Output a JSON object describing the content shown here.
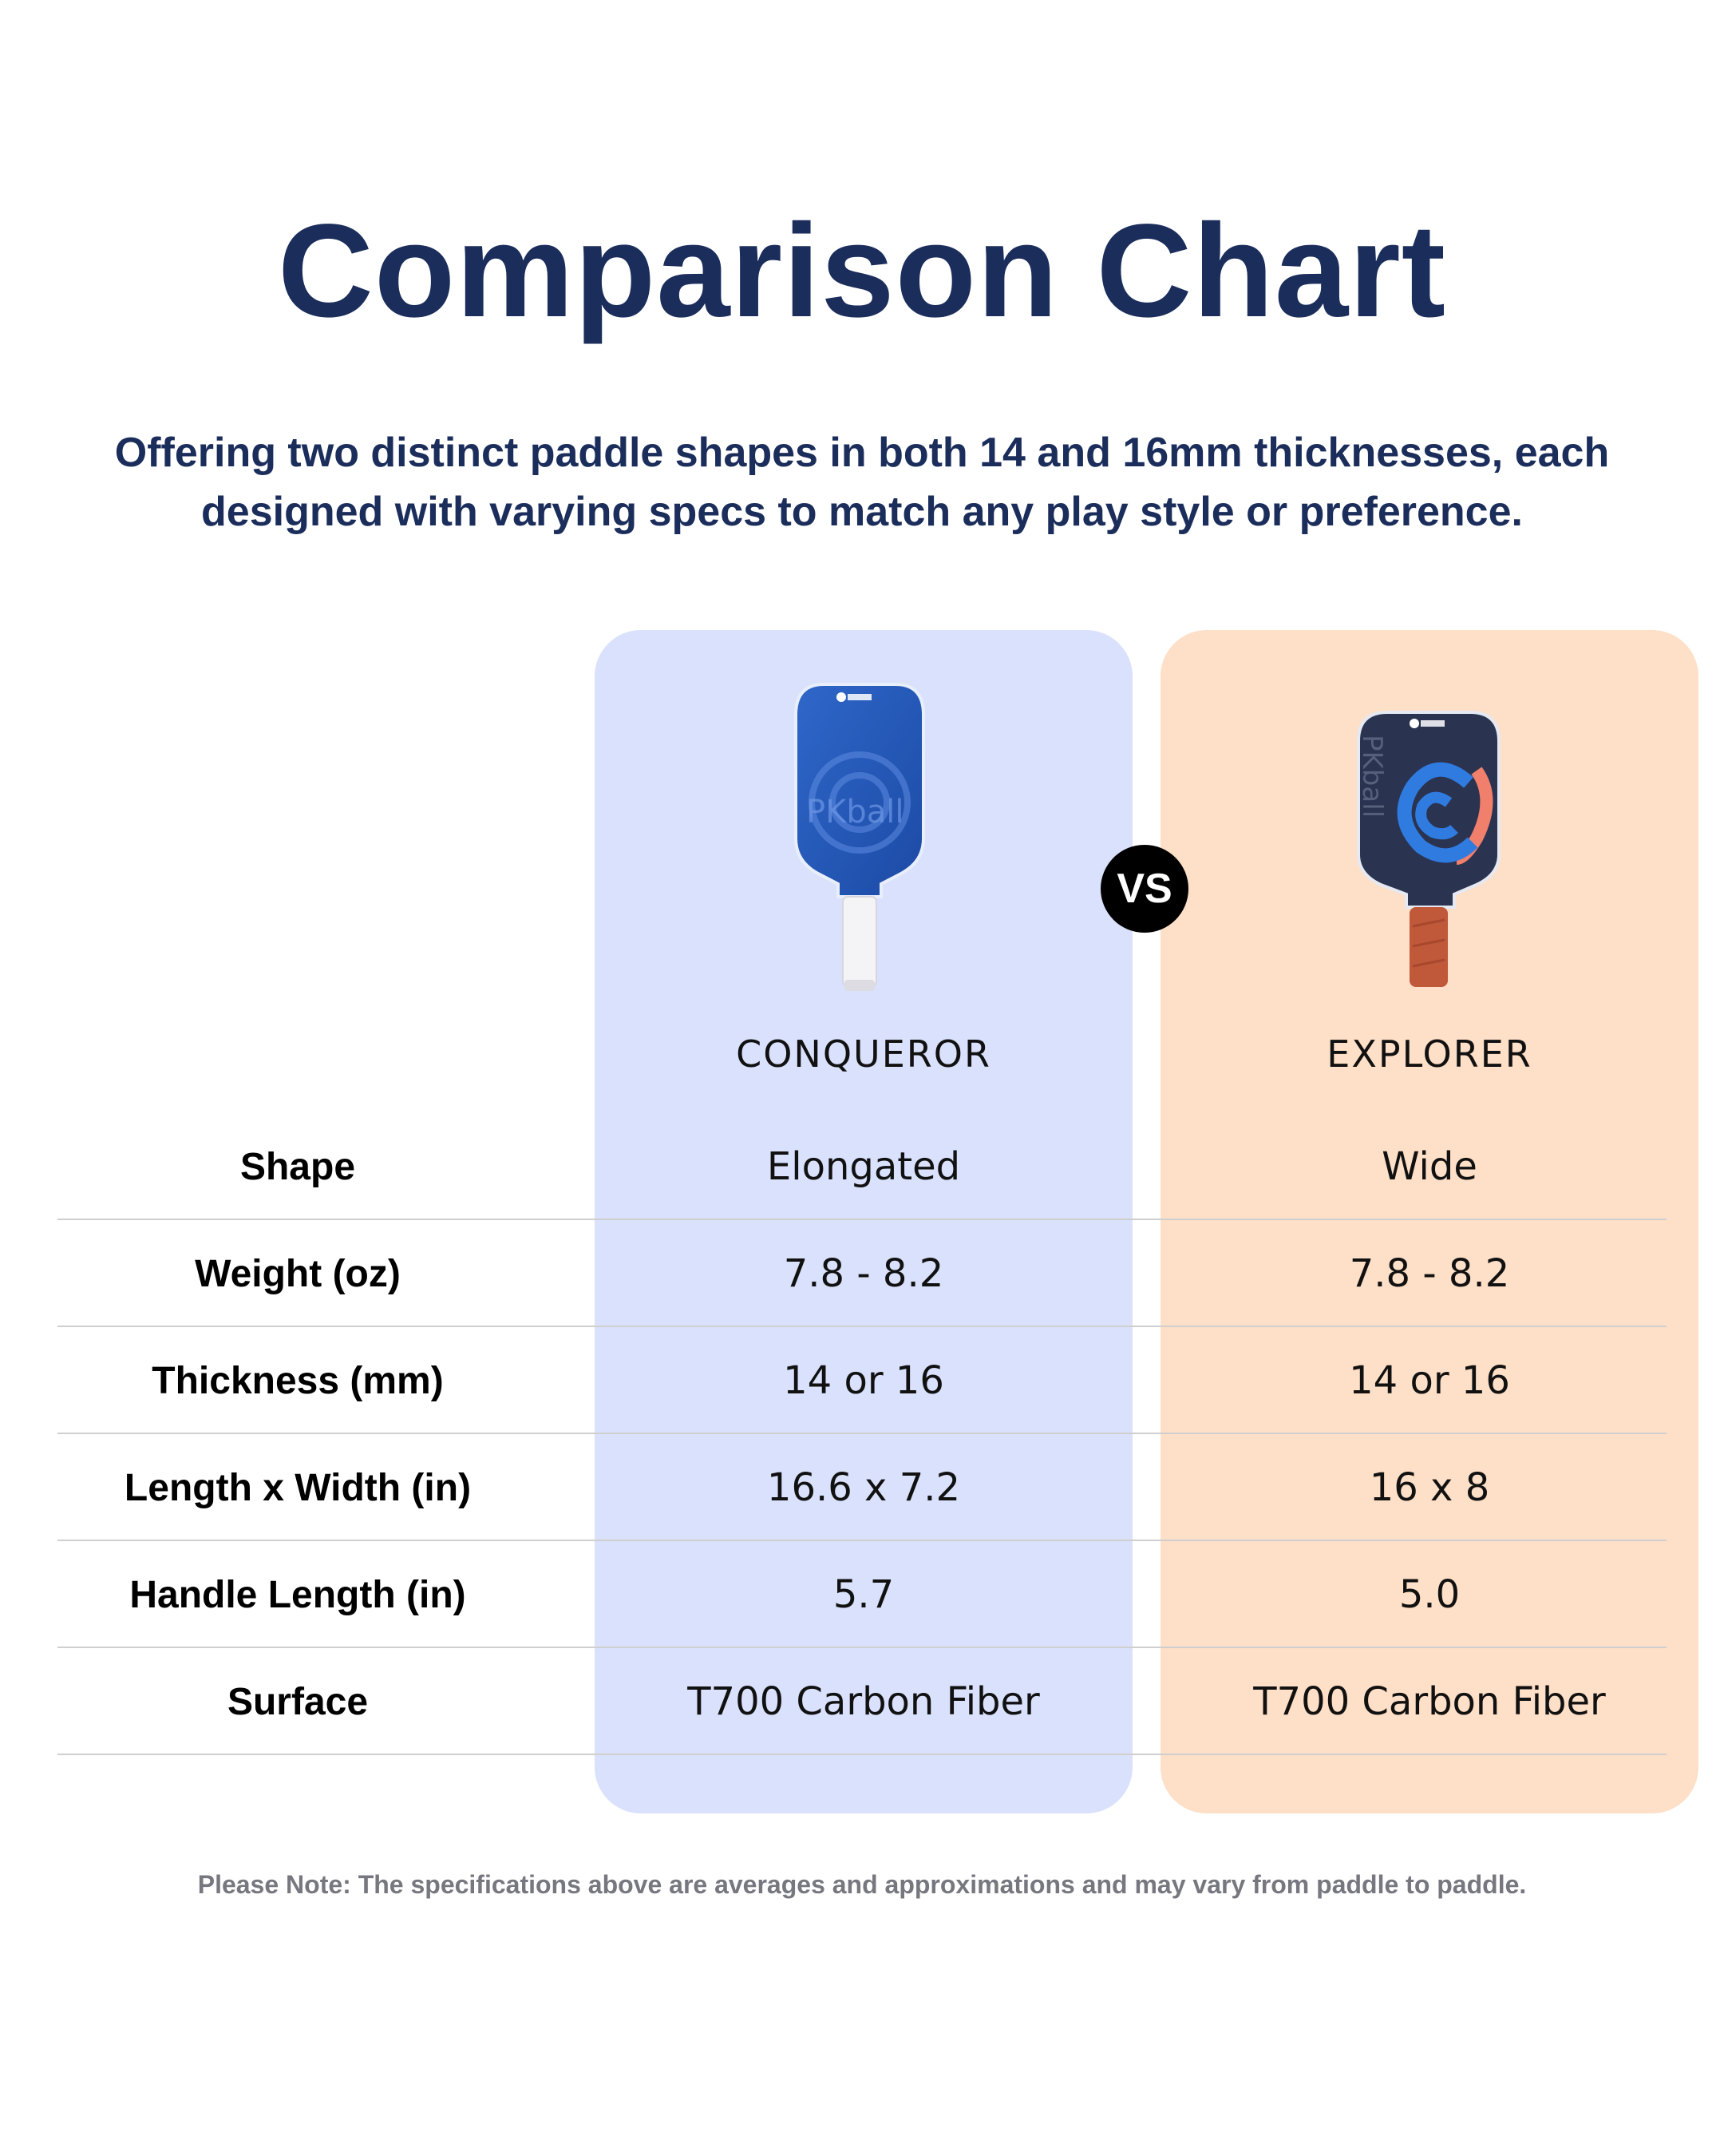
{
  "title": "Comparison Chart",
  "subtitle": "Offering two distinct paddle shapes in both 14 and 16mm thicknesses, each designed with varying specs to match any play style or preference.",
  "vs_label": "VS",
  "products": [
    {
      "name": "CONQUEROR",
      "color": "#d9e1fc",
      "paddle_brand": "PKball"
    },
    {
      "name": "EXPLORER",
      "color": "#fedfc7",
      "paddle_brand": "PKball"
    }
  ],
  "rows": [
    {
      "label": "Shape",
      "values": [
        "Elongated",
        "Wide"
      ]
    },
    {
      "label": "Weight (oz)",
      "values": [
        "7.8 - 8.2",
        "7.8 - 8.2"
      ]
    },
    {
      "label": "Thickness (mm)",
      "values": [
        "14 or 16",
        "14 or 16"
      ]
    },
    {
      "label": "Length x Width (in)",
      "values": [
        "16.6 x 7.2",
        "16 x 8"
      ]
    },
    {
      "label": "Handle Length (in)",
      "values": [
        "5.7",
        "5.0"
      ]
    },
    {
      "label": "Surface",
      "values": [
        "T700 Carbon Fiber",
        "T700 Carbon Fiber"
      ]
    }
  ],
  "note": "Please Note: The specifications above are averages and approximations and may vary from paddle to paddle.",
  "colors": {
    "title": "#1b2d5b",
    "note": "#77777f"
  }
}
